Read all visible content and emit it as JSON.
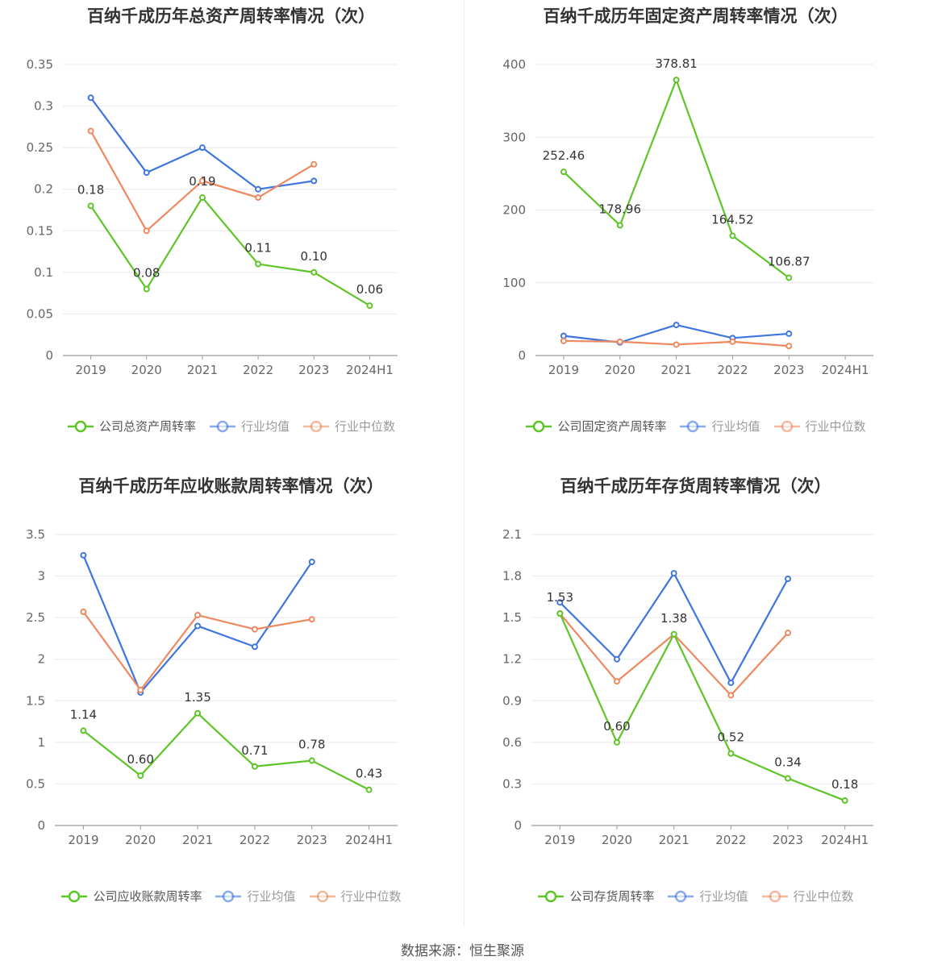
{
  "source": "数据来源：恒生聚源",
  "colors": {
    "company": "#5ec528",
    "avg": "#3e75e0",
    "median": "#f0885f"
  },
  "chart_data": [
    {
      "type": "line",
      "title": "百纳千成历年总资产周转率情况（次）",
      "categories": [
        "2019",
        "2020",
        "2021",
        "2022",
        "2023",
        "2024H1"
      ],
      "ylim": [
        0,
        0.35
      ],
      "yticks": [
        "0",
        "0.05",
        "0.1",
        "0.15",
        "0.2",
        "0.25",
        "0.3",
        "0.35"
      ],
      "series": [
        {
          "name": "公司总资产周转率",
          "values": [
            0.18,
            0.08,
            0.19,
            0.11,
            0.1,
            0.06
          ],
          "labels": [
            "0.18",
            "0.08",
            "0.19",
            "0.11",
            "0.10",
            "0.06"
          ]
        },
        {
          "name": "行业均值",
          "values": [
            0.31,
            0.22,
            0.25,
            0.2,
            0.21,
            null
          ]
        },
        {
          "name": "行业中位数",
          "values": [
            0.27,
            0.15,
            0.21,
            0.19,
            0.23,
            null
          ]
        }
      ],
      "legend_position": "bottom",
      "grid": true
    },
    {
      "type": "line",
      "title": "百纳千成历年固定资产周转率情况（次）",
      "categories": [
        "2019",
        "2020",
        "2021",
        "2022",
        "2023",
        "2024H1"
      ],
      "ylim": [
        0,
        400
      ],
      "yticks": [
        "0",
        "100",
        "200",
        "300",
        "400"
      ],
      "series": [
        {
          "name": "公司固定资产周转率",
          "values": [
            252.46,
            178.96,
            378.81,
            164.52,
            106.87,
            null
          ],
          "labels": [
            "252.46",
            "178.96",
            "378.81",
            "164.52",
            "106.87",
            ""
          ]
        },
        {
          "name": "行业均值",
          "values": [
            27,
            18,
            42,
            24,
            30,
            null
          ]
        },
        {
          "name": "行业中位数",
          "values": [
            20,
            19,
            15,
            19,
            13,
            null
          ]
        }
      ],
      "legend_position": "bottom",
      "grid": true
    },
    {
      "type": "line",
      "title": "百纳千成历年应收账款周转率情况（次）",
      "categories": [
        "2019",
        "2020",
        "2021",
        "2022",
        "2023",
        "2024H1"
      ],
      "ylim": [
        0,
        3.5
      ],
      "yticks": [
        "0",
        "0.5",
        "1",
        "1.5",
        "2",
        "2.5",
        "3",
        "3.5"
      ],
      "series": [
        {
          "name": "公司应收账款周转率",
          "values": [
            1.14,
            0.6,
            1.35,
            0.71,
            0.78,
            0.43
          ],
          "labels": [
            "1.14",
            "0.60",
            "1.35",
            "0.71",
            "0.78",
            "0.43"
          ]
        },
        {
          "name": "行业均值",
          "values": [
            3.25,
            1.6,
            2.4,
            2.15,
            3.17,
            null
          ]
        },
        {
          "name": "行业中位数",
          "values": [
            2.57,
            1.63,
            2.53,
            2.36,
            2.48,
            null
          ]
        }
      ],
      "legend_position": "bottom",
      "grid": true
    },
    {
      "type": "line",
      "title": "百纳千成历年存货周转率情况（次）",
      "categories": [
        "2019",
        "2020",
        "2021",
        "2022",
        "2023",
        "2024H1"
      ],
      "ylim": [
        0,
        2.1
      ],
      "yticks": [
        "0",
        "0.3",
        "0.6",
        "0.9",
        "1.2",
        "1.5",
        "1.8",
        "2.1"
      ],
      "series": [
        {
          "name": "公司存货周转率",
          "values": [
            1.53,
            0.6,
            1.38,
            0.52,
            0.34,
            0.18
          ],
          "labels": [
            "1.53",
            "0.60",
            "1.38",
            "0.52",
            "0.34",
            "0.18"
          ]
        },
        {
          "name": "行业均值",
          "values": [
            1.61,
            1.2,
            1.82,
            1.03,
            1.78,
            null
          ]
        },
        {
          "name": "行业中位数",
          "values": [
            1.53,
            1.04,
            1.38,
            0.94,
            1.39,
            null
          ]
        }
      ],
      "legend_position": "bottom",
      "grid": true
    }
  ]
}
